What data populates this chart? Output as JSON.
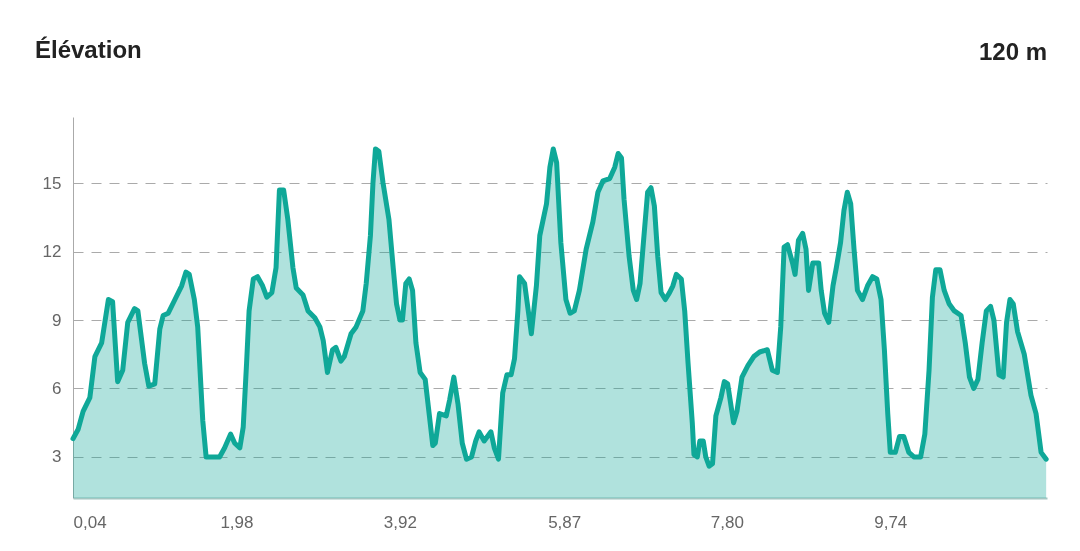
{
  "chart_data": {
    "type": "area",
    "title": "Élévation",
    "annotations": [
      "120 m"
    ],
    "x": [
      0.04,
      0.1,
      0.16,
      0.24,
      0.3,
      0.38,
      0.46,
      0.51,
      0.57,
      0.63,
      0.69,
      0.77,
      0.81,
      0.89,
      0.94,
      1.01,
      1.07,
      1.11,
      1.17,
      1.25,
      1.33,
      1.38,
      1.42,
      1.48,
      1.52,
      1.58,
      1.62,
      1.78,
      1.84,
      1.91,
      1.96,
      2.02,
      2.06,
      2.1,
      2.13,
      2.18,
      2.23,
      2.29,
      2.34,
      2.4,
      2.45,
      2.49,
      2.54,
      2.59,
      2.65,
      2.69,
      2.77,
      2.83,
      2.91,
      2.97,
      3.01,
      3.06,
      3.12,
      3.16,
      3.22,
      3.26,
      3.34,
      3.4,
      3.48,
      3.52,
      3.57,
      3.6,
      3.63,
      3.67,
      3.72,
      3.79,
      3.84,
      3.88,
      3.92,
      3.95,
      3.99,
      4.03,
      4.07,
      4.11,
      4.16,
      4.22,
      4.27,
      4.31,
      4.34,
      4.39,
      4.47,
      4.51,
      4.56,
      4.61,
      4.66,
      4.71,
      4.77,
      4.82,
      4.86,
      4.92,
      5.0,
      5.04,
      5.09,
      5.14,
      5.19,
      5.24,
      5.28,
      5.32,
      5.34,
      5.4,
      5.48,
      5.54,
      5.58,
      5.66,
      5.7,
      5.74,
      5.78,
      5.83,
      5.89,
      5.94,
      5.99,
      6.05,
      6.13,
      6.21,
      6.27,
      6.33,
      6.41,
      6.47,
      6.51,
      6.55,
      6.58,
      6.64,
      6.69,
      6.73,
      6.77,
      6.81,
      6.86,
      6.9,
      6.94,
      6.98,
      7.02,
      7.07,
      7.12,
      7.16,
      7.2,
      7.26,
      7.3,
      7.34,
      7.39,
      7.41,
      7.45,
      7.48,
      7.52,
      7.55,
      7.59,
      7.63,
      7.67,
      7.73,
      7.77,
      7.81,
      7.88,
      7.92,
      7.98,
      8.05,
      8.12,
      8.19,
      8.28,
      8.34,
      8.4,
      8.44,
      8.48,
      8.52,
      8.58,
      8.61,
      8.65,
      8.7,
      8.74,
      8.77,
      8.82,
      8.89,
      8.92,
      8.96,
      9.01,
      9.06,
      9.1,
      9.15,
      9.19,
      9.23,
      9.27,
      9.31,
      9.35,
      9.41,
      9.47,
      9.53,
      9.58,
      9.63,
      9.67,
      9.71,
      9.74,
      9.8,
      9.85,
      9.9,
      9.96,
      10.02,
      10.1,
      10.15,
      10.2,
      10.24,
      10.28,
      10.33,
      10.38,
      10.44,
      10.5,
      10.58,
      10.63,
      10.68,
      10.73,
      10.78,
      10.83,
      10.88,
      10.93,
      10.97,
      11.03,
      11.08,
      11.12,
      11.16,
      11.2,
      11.25,
      11.33,
      11.41,
      11.47,
      11.53,
      11.59
    ],
    "series": [
      {
        "color": "#0fa898",
        "values": [
          3.8,
          4.2,
          5.0,
          5.6,
          7.4,
          8.0,
          9.9,
          9.8,
          6.3,
          6.8,
          8.9,
          9.5,
          9.4,
          7.1,
          6.1,
          6.2,
          8.6,
          9.2,
          9.3,
          9.9,
          10.5,
          11.1,
          11.0,
          9.9,
          8.7,
          4.6,
          3.0,
          3.0,
          3.4,
          4.0,
          3.6,
          3.4,
          4.3,
          7.1,
          9.4,
          10.8,
          10.9,
          10.5,
          10.0,
          10.2,
          11.3,
          14.7,
          14.7,
          13.4,
          11.3,
          10.4,
          10.1,
          9.4,
          9.1,
          8.7,
          8.1,
          6.7,
          7.7,
          7.8,
          7.2,
          7.4,
          8.4,
          8.7,
          9.4,
          10.6,
          12.7,
          15.0,
          16.5,
          16.4,
          15.0,
          13.4,
          11.3,
          9.7,
          9.0,
          9.0,
          10.6,
          10.8,
          10.3,
          8.0,
          6.7,
          6.4,
          4.8,
          3.5,
          3.6,
          4.9,
          4.8,
          5.5,
          6.5,
          5.3,
          3.6,
          2.9,
          3.0,
          3.7,
          4.1,
          3.7,
          4.1,
          3.4,
          2.9,
          5.8,
          6.6,
          6.6,
          7.3,
          9.4,
          10.9,
          10.6,
          8.4,
          10.5,
          12.7,
          14.1,
          15.7,
          16.5,
          15.9,
          12.4,
          9.9,
          9.3,
          9.4,
          10.3,
          12.1,
          13.3,
          14.6,
          15.1,
          15.2,
          15.7,
          16.3,
          16.1,
          14.3,
          11.8,
          10.3,
          9.9,
          10.6,
          12.4,
          14.6,
          14.8,
          14.0,
          11.8,
          10.2,
          9.9,
          10.2,
          10.5,
          11.0,
          10.8,
          9.4,
          7.1,
          4.5,
          3.1,
          3.0,
          3.7,
          3.7,
          3.0,
          2.6,
          2.7,
          4.8,
          5.6,
          6.3,
          6.2,
          4.5,
          5.0,
          6.5,
          7.0,
          7.4,
          7.6,
          7.7,
          6.8,
          6.7,
          8.7,
          12.2,
          12.3,
          11.5,
          11.0,
          12.5,
          12.8,
          12.1,
          10.3,
          11.5,
          11.5,
          10.3,
          9.3,
          8.9,
          10.5,
          11.3,
          12.4,
          13.8,
          14.6,
          14.1,
          12.1,
          10.3,
          9.9,
          10.5,
          10.9,
          10.8,
          9.9,
          7.7,
          4.9,
          3.2,
          3.2,
          3.9,
          3.9,
          3.2,
          3.0,
          3.0,
          4.0,
          6.8,
          10.0,
          11.2,
          11.2,
          10.3,
          9.7,
          9.4,
          9.2,
          8.0,
          6.5,
          6.0,
          6.4,
          8.0,
          9.4,
          9.6,
          9.0,
          6.6,
          6.5,
          8.9,
          9.9,
          9.7,
          8.5,
          7.5,
          5.7,
          4.9,
          3.2,
          2.9
        ]
      }
    ],
    "xlim": [
      0.04,
      11.6
    ],
    "xticks": [
      {
        "value": 0.04,
        "label": "0,04"
      },
      {
        "value": 1.98,
        "label": "1,98"
      },
      {
        "value": 3.92,
        "label": "3,92"
      },
      {
        "value": 5.87,
        "label": "5,87"
      },
      {
        "value": 7.8,
        "label": "7,80"
      },
      {
        "value": 9.74,
        "label": "9,74"
      }
    ],
    "ylim": [
      1.2,
      17.9
    ],
    "yticks": [
      3,
      6,
      9,
      12,
      15
    ],
    "grid": "y"
  }
}
